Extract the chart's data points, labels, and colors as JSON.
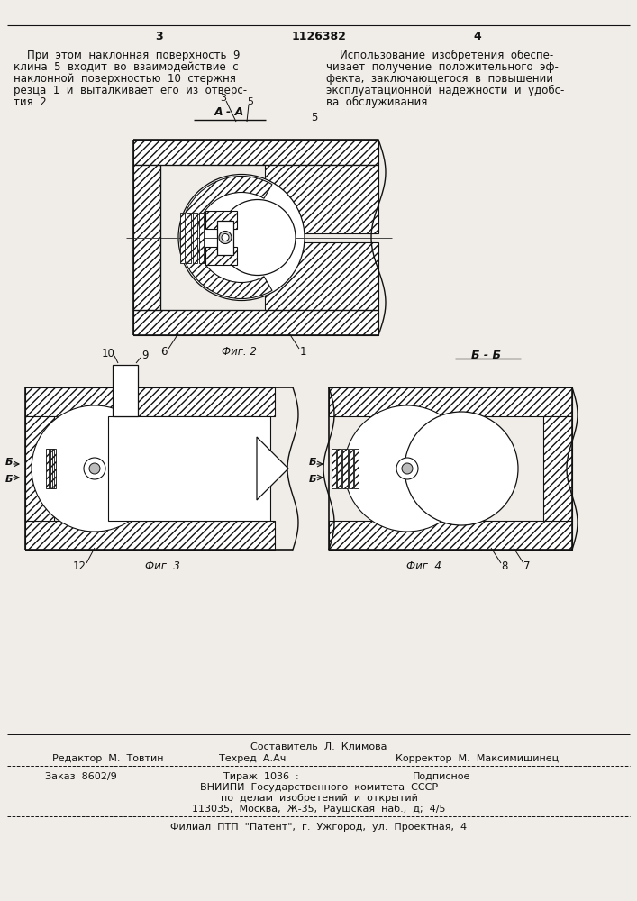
{
  "bg_color": "#f0ede8",
  "text_color": "#111111",
  "line_color": "#111111",
  "page_number_left": "3",
  "page_number_center": "1126382",
  "page_number_right": "4",
  "col1_text_lines": [
    "    При  этом  наклонная  поверхность  9",
    "клина  5  входит  во  взаимодействие  с",
    "наклонной  поверхностью  10  стержня",
    "резца  1  и  выталкивает  его  из  отверс-",
    "тия  2."
  ],
  "col2_text_lines": [
    "    Использование  изобретения  обеспе-",
    "чивает  получение  положительного  эф-",
    "фекта,  заключающегося  в  повышении",
    "эксплуатационной  надежности  и  удобс-",
    "ва  обслуживания."
  ],
  "label_5_right": "5",
  "section_aa": "А - А",
  "section_bb": "Б - Б",
  "fig2_label": "Фиг. 2",
  "fig3_label": "Фиг. 3",
  "fig4_label": "Фиг. 4",
  "footer_composer": "Составитель  Л.  Климова",
  "footer_editor": "Редактор  М.  Товтин",
  "footer_techred": "Техред  А.Ач",
  "footer_corrector": "Корректор  М.  Максимишинец",
  "footer_order": "Заказ  8602/9",
  "footer_tirazh": "Тираж  1036  :",
  "footer_podp": "Подписное",
  "footer_vnipi": "ВНИИПИ  Государственного  комитета  СССР",
  "footer_po": "по  делам  изобретений  и  открытий",
  "footer_addr": "113035,  Москва,  Ж-35,  Раушская  наб.,  д;  4/5",
  "footer_filial": "Филиал  ПТП  \"Патент\",  г.  Ужгород,  ул.  Проектная,  4"
}
